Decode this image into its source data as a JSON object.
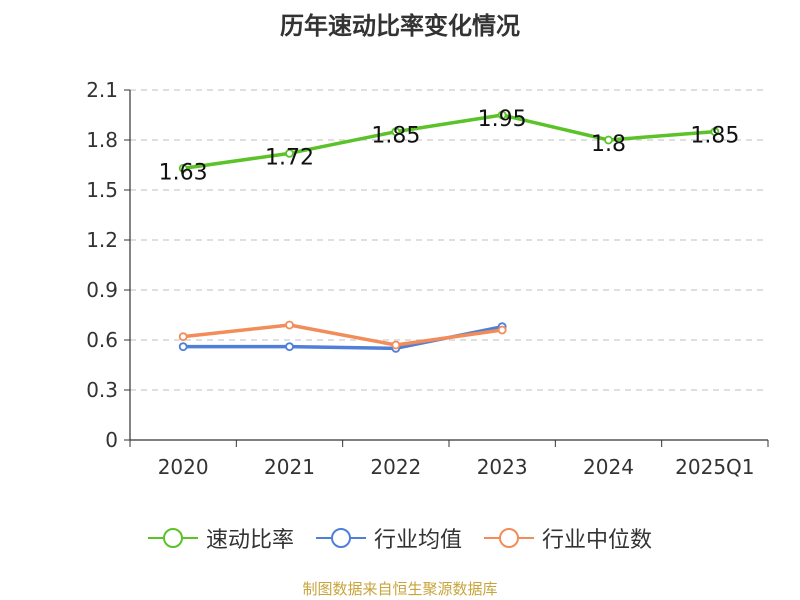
{
  "chart_data": {
    "type": "line",
    "title": "历年速动比率变化情况",
    "categories": [
      "2020",
      "2021",
      "2022",
      "2023",
      "2024",
      "2025Q1"
    ],
    "ylim": [
      0,
      2.1
    ],
    "yticks": [
      0,
      0.3,
      0.6,
      0.9,
      1.2,
      1.5,
      1.8,
      2.1
    ],
    "ytick_labels": [
      "0",
      "0.3",
      "0.6",
      "0.9",
      "1.2",
      "1.5",
      "1.8",
      "2.1"
    ],
    "grid": true,
    "legend_position": "bottom",
    "series": [
      {
        "name": "速动比率",
        "color": "#5BC228",
        "values": [
          1.63,
          1.72,
          1.85,
          1.95,
          1.8,
          1.85
        ],
        "labels": [
          "1.63",
          "1.72",
          "1.85",
          "1.95",
          "1.8",
          "1.85"
        ],
        "show_labels": true
      },
      {
        "name": "行业均值",
        "color": "#4F7FD8",
        "values": [
          0.56,
          0.56,
          0.55,
          0.68,
          null,
          null
        ],
        "show_labels": false
      },
      {
        "name": "行业中位数",
        "color": "#F28C58",
        "values": [
          0.62,
          0.69,
          0.57,
          0.66,
          null,
          null
        ],
        "show_labels": false
      }
    ]
  },
  "footer": {
    "source": "制图数据来自恒生聚源数据库"
  }
}
